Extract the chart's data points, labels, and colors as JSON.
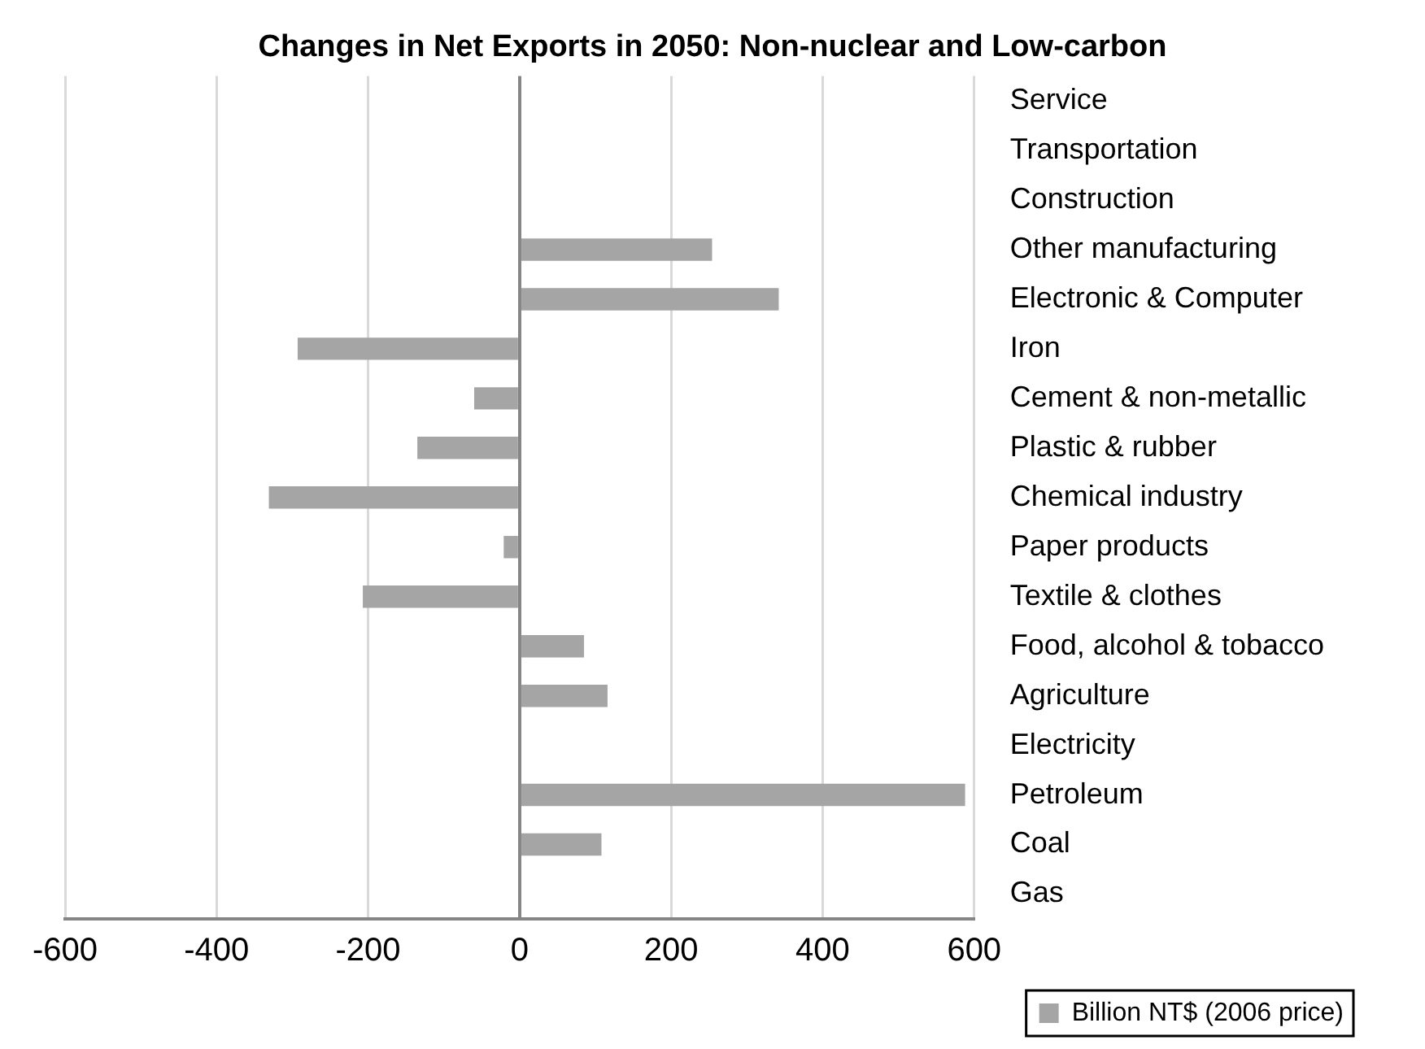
{
  "chart_data": {
    "type": "bar",
    "orientation": "horizontal",
    "title": "Changes in Net Exports in 2050: Non-nuclear and Low-carbon",
    "categories": [
      "Service",
      "Transportation",
      "Construction",
      "Other manufacturing",
      "Electronic & Computer",
      "Iron",
      "Cement & non-metallic",
      "Plastic & rubber",
      "Chemical industry",
      "Paper products",
      "Textile & clothes",
      "Food, alcohol & tobacco",
      "Agriculture",
      "Electricity",
      "Petroleum",
      "Coal",
      "Gas"
    ],
    "series": [
      {
        "name": "Billion NT$ (2006 price)",
        "color": "#a5a5a5",
        "values": [
          0,
          0,
          0,
          254,
          342,
          -293,
          -60,
          -135,
          -331,
          -21,
          -207,
          85,
          116,
          0,
          588,
          108,
          0
        ]
      }
    ],
    "xlim": [
      -600,
      600
    ],
    "xticks": [
      -600,
      -400,
      -200,
      0,
      200,
      400,
      600
    ],
    "grid": "x",
    "legend": "bottom right"
  }
}
